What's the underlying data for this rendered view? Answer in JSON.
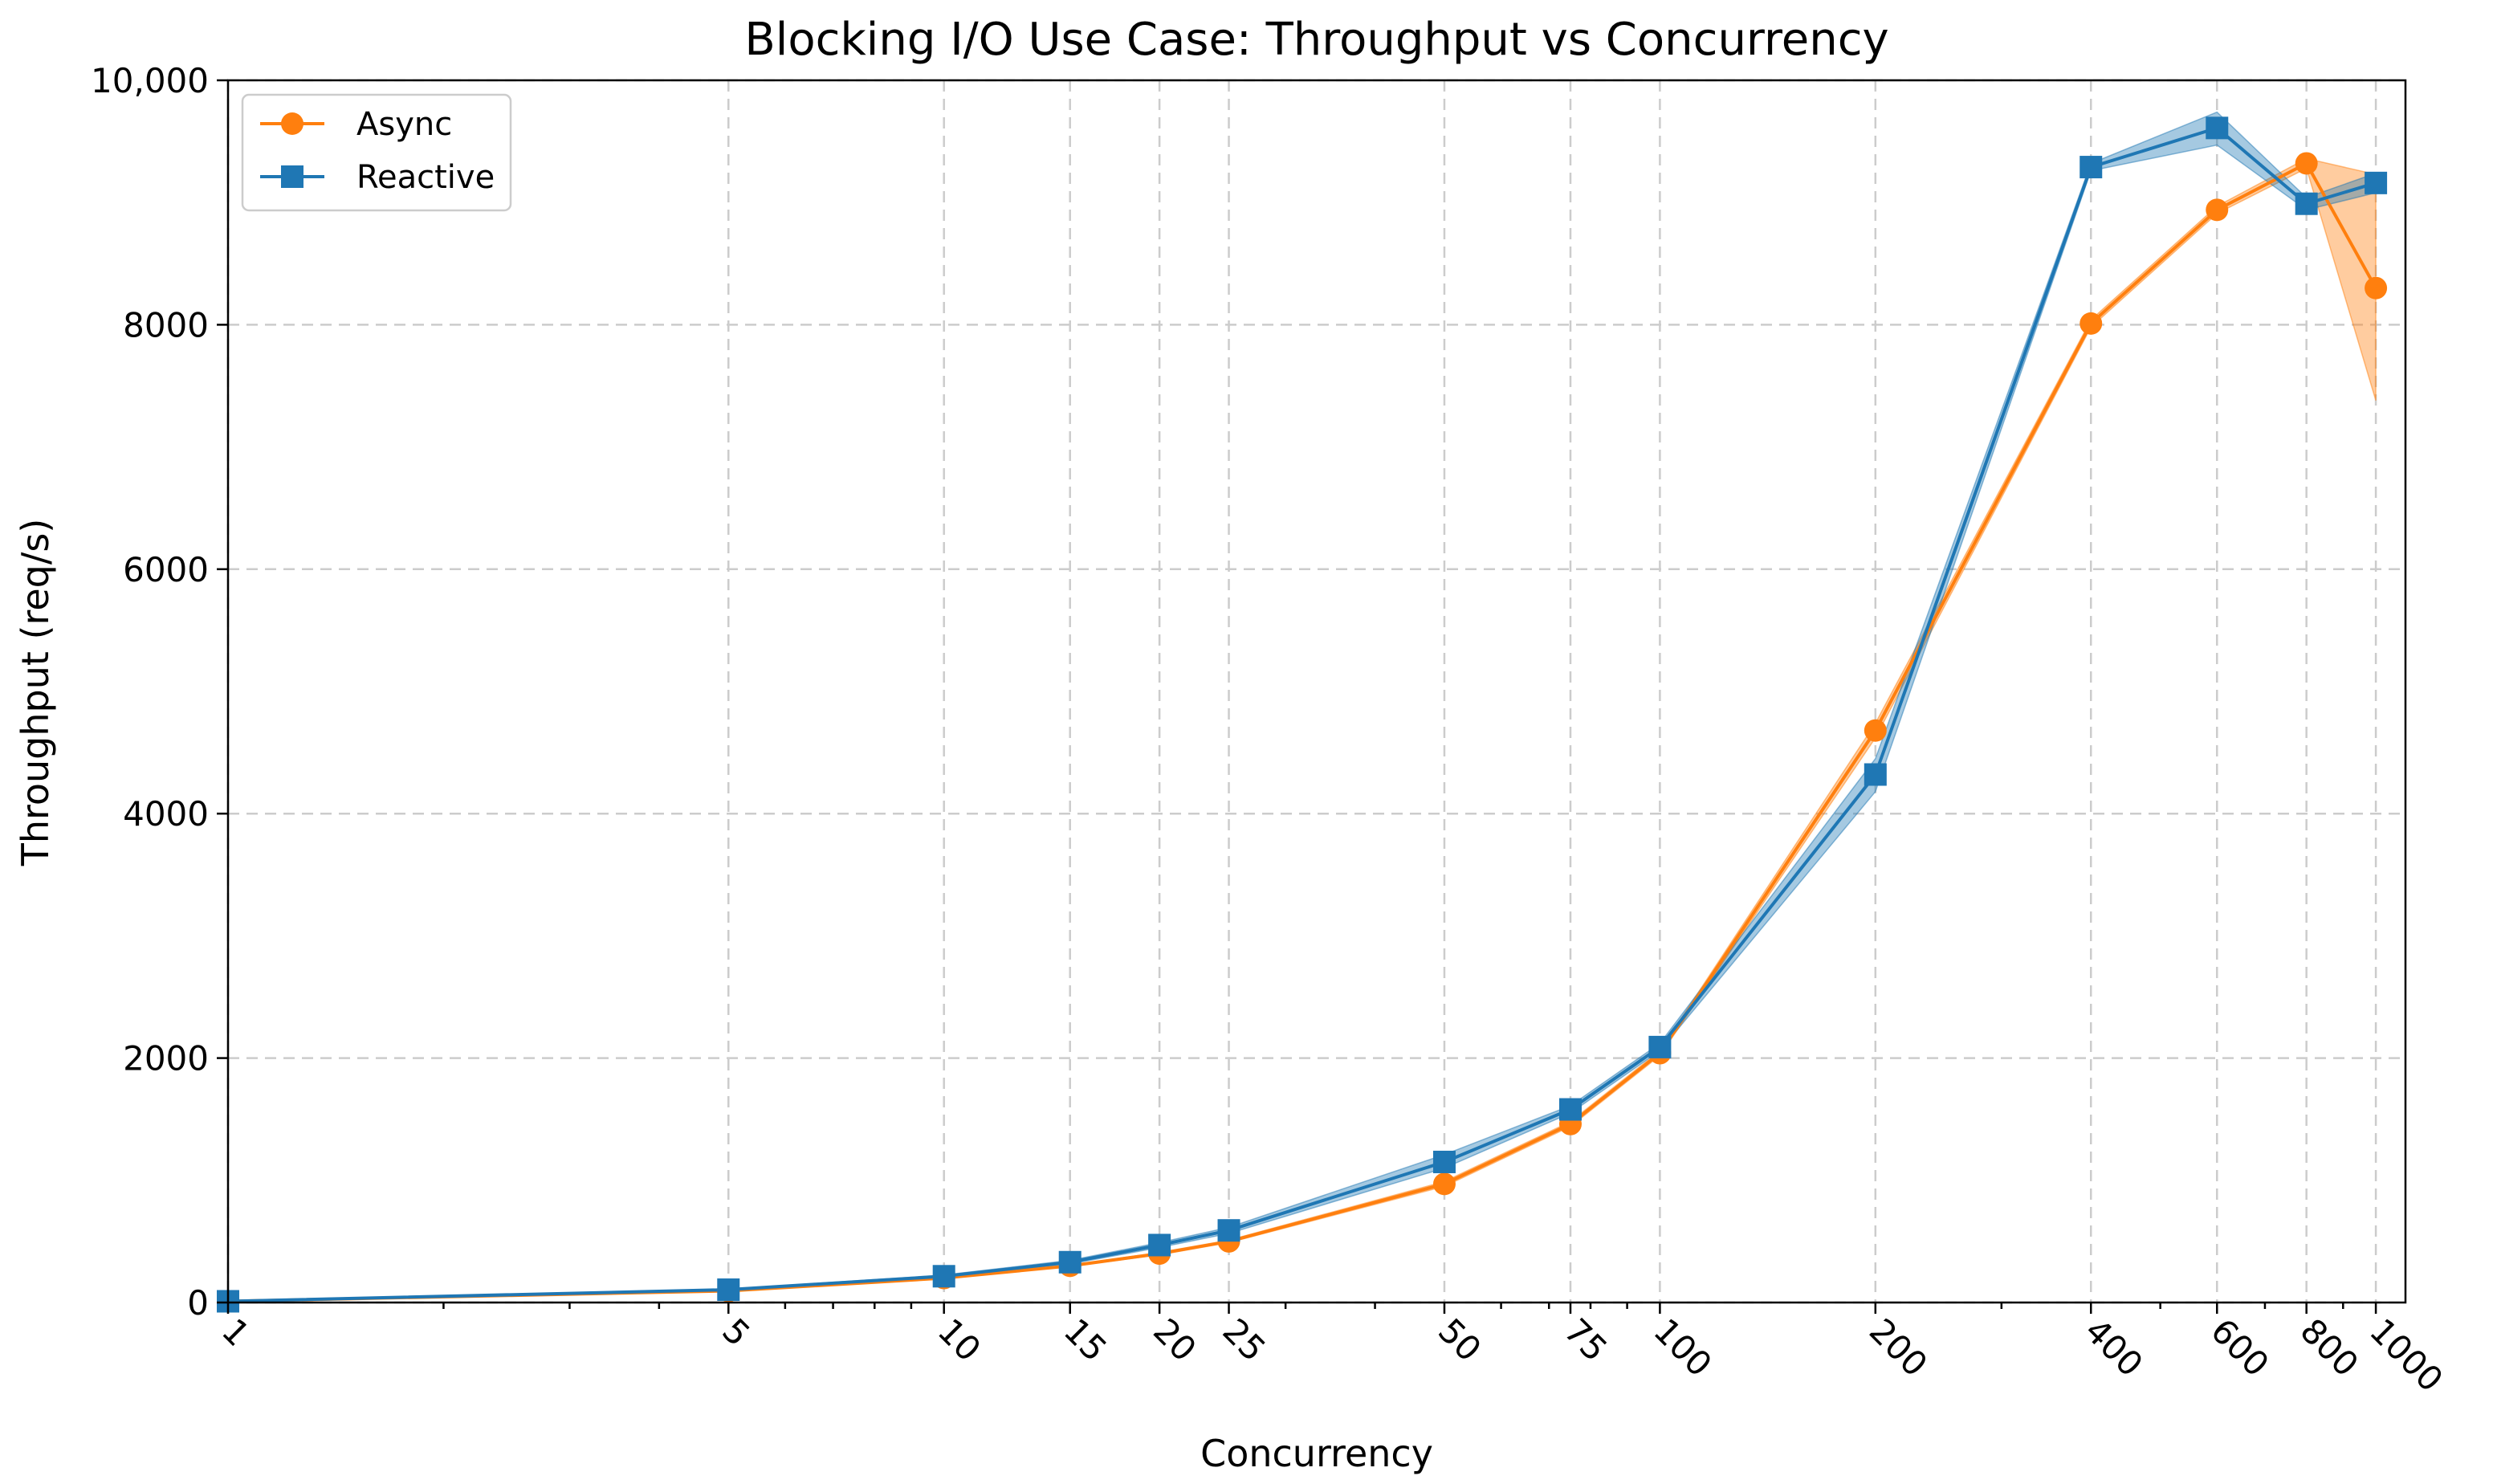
{
  "chart_data": {
    "type": "line",
    "title": "Blocking I/O Use Case: Throughput vs Concurrency",
    "xlabel": "Concurrency",
    "ylabel": "Throughput (req/s)",
    "x_scale": "log",
    "xlim": [
      1,
      1100
    ],
    "ylim": [
      0,
      10000
    ],
    "grid": true,
    "legend_position": "top-left",
    "x_ticks": [
      1,
      5,
      10,
      15,
      20,
      25,
      50,
      75,
      100,
      200,
      400,
      600,
      800,
      1000
    ],
    "x_tick_labels": [
      "1",
      "5",
      "10",
      "15",
      "20",
      "25",
      "50",
      "75",
      "100",
      "200",
      "400",
      "600",
      "800",
      "1000"
    ],
    "y_ticks": [
      0,
      2000,
      4000,
      6000,
      8000,
      10000
    ],
    "y_tick_labels": [
      "0",
      "2000",
      "4000",
      "6000",
      "8000",
      "10,000"
    ],
    "x": [
      1,
      5,
      10,
      15,
      20,
      25,
      50,
      75,
      100,
      200,
      400,
      600,
      800,
      1000
    ],
    "series": [
      {
        "name": "Async",
        "color": "#ff7f0e",
        "marker": "circle",
        "values": [
          10,
          95,
          200,
          300,
          400,
          500,
          970,
          1460,
          2040,
          4680,
          8010,
          8940,
          9320,
          8300
        ],
        "band_low": [
          10,
          95,
          195,
          295,
          390,
          490,
          950,
          1440,
          2020,
          4620,
          7980,
          8910,
          9280,
          7380
        ],
        "band_high": [
          10,
          95,
          205,
          305,
          410,
          510,
          990,
          1480,
          2060,
          4740,
          8040,
          8970,
          9360,
          9230
        ]
      },
      {
        "name": "Reactive",
        "color": "#1f77b4",
        "marker": "square",
        "values": [
          10,
          105,
          215,
          330,
          470,
          590,
          1150,
          1580,
          2090,
          4320,
          9290,
          9610,
          8990,
          9160
        ],
        "band_low": [
          10,
          100,
          205,
          315,
          450,
          565,
          1100,
          1550,
          2060,
          4180,
          9260,
          9470,
          8940,
          9080
        ],
        "band_high": [
          10,
          110,
          225,
          345,
          490,
          615,
          1210,
          1610,
          2120,
          4450,
          9320,
          9740,
          9040,
          9240
        ]
      }
    ]
  }
}
